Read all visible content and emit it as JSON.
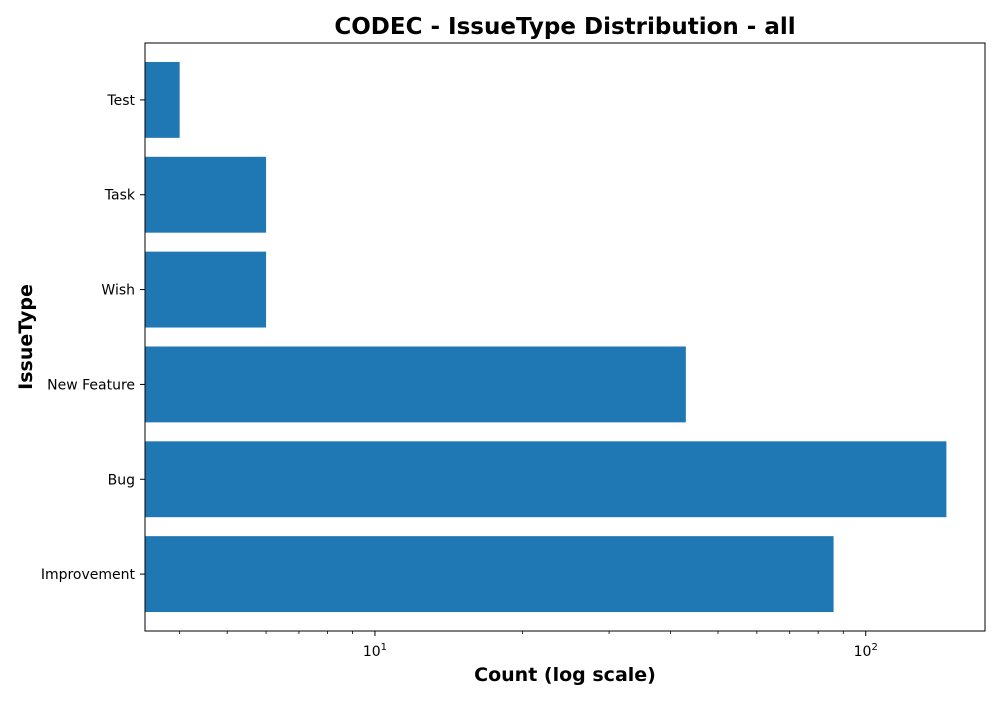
{
  "chart_data": {
    "type": "bar",
    "orientation": "horizontal",
    "title": "CODEC - IssueType Distribution - all",
    "xlabel": "Count (log scale)",
    "ylabel": "IssueType",
    "x_scale": "log",
    "xlim": [
      3.4,
      175
    ],
    "categories": [
      "Improvement",
      "Bug",
      "New Feature",
      "Wish",
      "Task",
      "Test"
    ],
    "values": [
      86,
      146,
      43,
      6,
      6,
      4
    ],
    "x_ticks": [
      {
        "value": 10,
        "base": "10",
        "exp": "1"
      },
      {
        "value": 100,
        "base": "10",
        "exp": "2"
      }
    ],
    "x_minor_ticks": [
      4,
      5,
      6,
      7,
      8,
      9,
      20,
      30,
      40,
      50,
      60,
      70,
      80,
      90
    ],
    "bar_color": "#1f77b4",
    "grid": false,
    "legend": "none"
  }
}
